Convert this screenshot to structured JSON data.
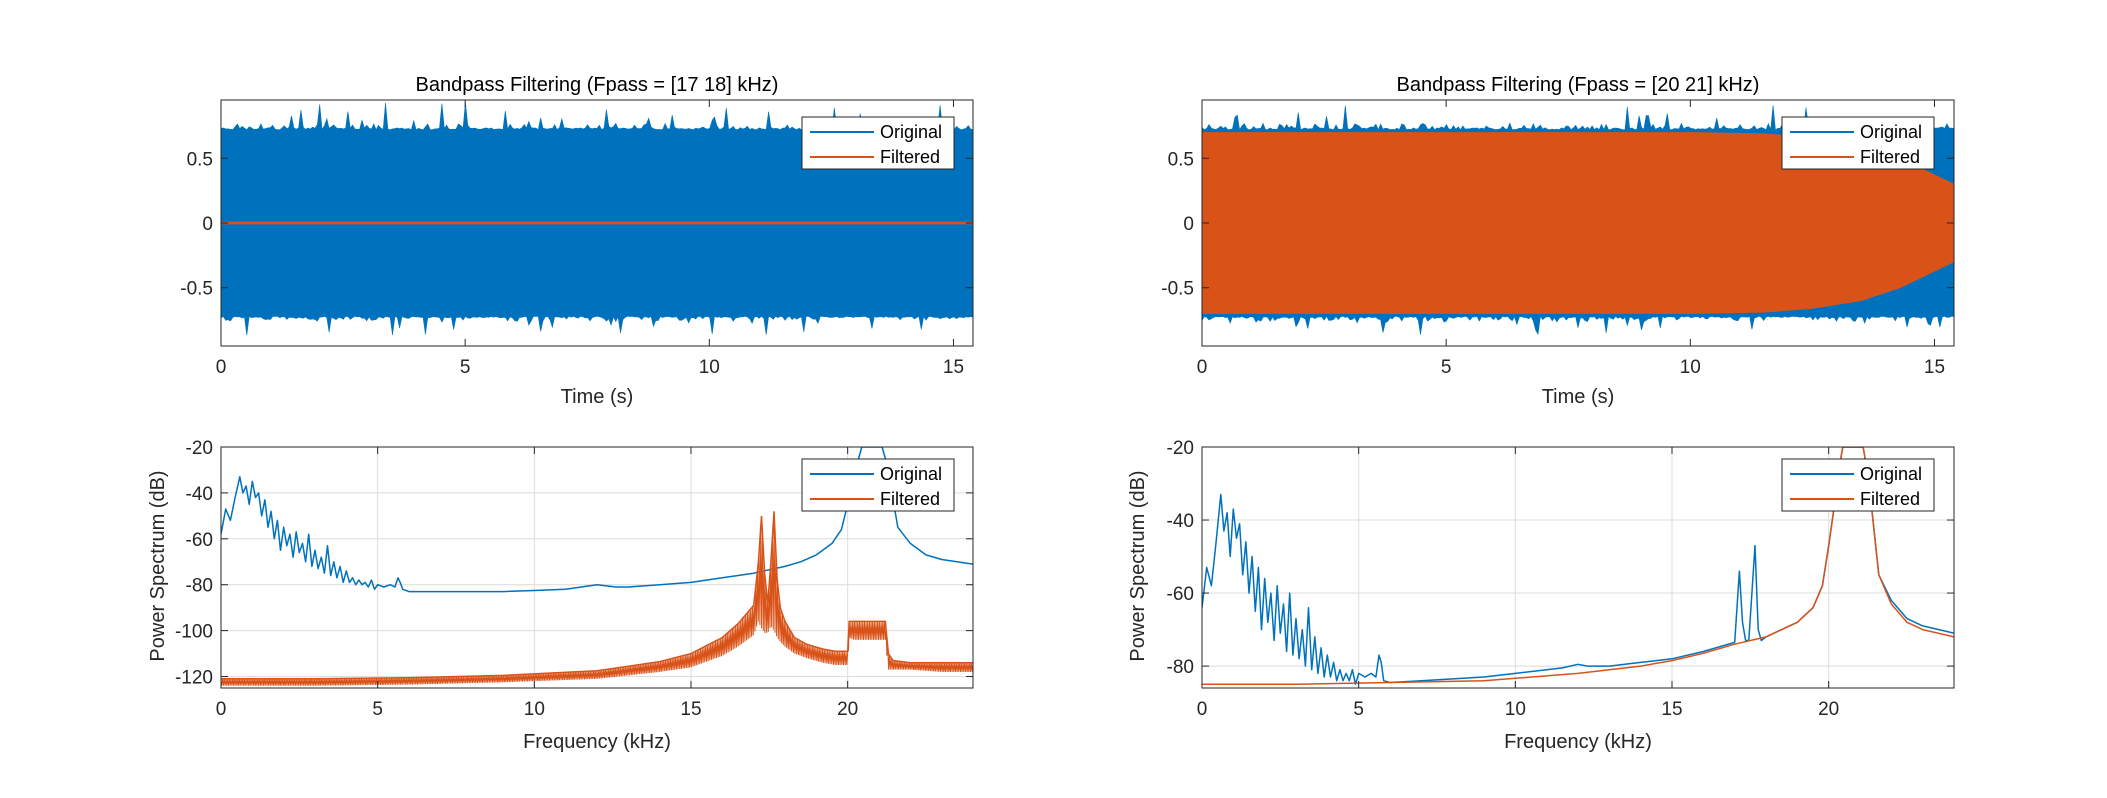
{
  "colors": {
    "original": "#0072BD",
    "filtered": "#D95319",
    "axis": "#262626",
    "grid": "#DCDCDC"
  },
  "chart_data": [
    {
      "id": "tl",
      "type": "area",
      "title": "Bandpass Filtering  (Fpass = [17 18] kHz)",
      "xlabel": "Time (s)",
      "ylabel": "",
      "xlim": [
        0,
        15.4
      ],
      "ylim": [
        -0.95,
        0.95
      ],
      "xticks": [
        0,
        5,
        10,
        15
      ],
      "yticks": [
        -0.5,
        0,
        0.5
      ],
      "ytick_labels": [
        "-0.5",
        "0",
        "0.5"
      ],
      "grid": false,
      "legend": [
        "Original",
        "Filtered"
      ],
      "legend_location": "top-right",
      "series": [
        {
          "name": "Original",
          "kind": "envelope",
          "x": [
            0,
            15.4
          ],
          "upper": [
            0.72,
            0.72
          ],
          "lower": [
            -0.72,
            -0.72
          ],
          "peak_extent": 0.93
        },
        {
          "name": "Filtered",
          "kind": "envelope",
          "x": [
            0,
            15.4
          ],
          "upper": [
            0.003,
            0.003
          ],
          "lower": [
            -0.003,
            -0.003
          ]
        }
      ]
    },
    {
      "id": "tr",
      "type": "area",
      "title": "Bandpass Filtering  (Fpass = [20 21] kHz)",
      "xlabel": "Time (s)",
      "ylabel": "",
      "xlim": [
        0,
        15.4
      ],
      "ylim": [
        -0.95,
        0.95
      ],
      "xticks": [
        0,
        5,
        10,
        15
      ],
      "yticks": [
        -0.5,
        0,
        0.5
      ],
      "ytick_labels": [
        "-0.5",
        "0",
        "0.5"
      ],
      "grid": false,
      "legend": [
        "Original",
        "Filtered"
      ],
      "legend_location": "top-right",
      "series": [
        {
          "name": "Original",
          "kind": "envelope",
          "x": [
            0,
            15.4
          ],
          "upper": [
            0.72,
            0.72
          ],
          "lower": [
            -0.72,
            -0.72
          ],
          "peak_extent": 0.93
        },
        {
          "name": "Filtered",
          "kind": "envelope",
          "x": [
            0,
            8,
            10,
            11.5,
            12.5,
            13.5,
            14.3,
            15.4
          ],
          "upper": [
            0.7,
            0.7,
            0.7,
            0.69,
            0.66,
            0.6,
            0.5,
            0.3
          ],
          "lower": [
            -0.7,
            -0.7,
            -0.7,
            -0.69,
            -0.66,
            -0.6,
            -0.5,
            -0.3
          ]
        }
      ]
    },
    {
      "id": "bl",
      "type": "line",
      "title": "",
      "xlabel": "Frequency (kHz)",
      "ylabel": "Power Spectrum (dB)",
      "xlim": [
        0,
        24
      ],
      "ylim": [
        -125,
        -20
      ],
      "xticks": [
        0,
        5,
        10,
        15,
        20
      ],
      "yticks": [
        -120,
        -100,
        -80,
        -60,
        -40,
        -20
      ],
      "ytick_labels": [
        "-120",
        "-100",
        "-80",
        "-60",
        "-40",
        "-20"
      ],
      "grid": true,
      "legend": [
        "Original",
        "Filtered"
      ],
      "legend_location": "top-right",
      "series": [
        {
          "name": "Original",
          "kind": "line",
          "x": [
            0,
            0.15,
            0.3,
            0.45,
            0.6,
            0.7,
            0.8,
            0.9,
            1.0,
            1.1,
            1.2,
            1.3,
            1.4,
            1.5,
            1.6,
            1.7,
            1.8,
            1.9,
            2.0,
            2.1,
            2.2,
            2.3,
            2.4,
            2.5,
            2.6,
            2.7,
            2.8,
            2.9,
            3.0,
            3.1,
            3.2,
            3.3,
            3.4,
            3.5,
            3.6,
            3.7,
            3.8,
            3.9,
            4.0,
            4.1,
            4.2,
            4.3,
            4.4,
            4.5,
            4.6,
            4.7,
            4.8,
            4.9,
            5.0,
            5.2,
            5.4,
            5.55,
            5.65,
            5.72,
            5.8,
            6.0,
            7,
            8,
            9,
            10,
            11,
            11.5,
            12,
            12.3,
            12.6,
            13,
            14,
            15,
            16,
            17,
            18,
            18.5,
            19,
            19.5,
            19.8,
            20.0,
            20.2,
            20.35,
            20.45,
            21.1,
            21.2,
            21.35,
            21.6,
            22,
            22.5,
            23,
            24
          ],
          "y": [
            -58,
            -47,
            -52,
            -42,
            -33,
            -40,
            -37,
            -45,
            -35,
            -42,
            -40,
            -50,
            -43,
            -55,
            -48,
            -60,
            -52,
            -65,
            -55,
            -63,
            -58,
            -68,
            -57,
            -66,
            -62,
            -70,
            -58,
            -72,
            -65,
            -73,
            -68,
            -75,
            -63,
            -76,
            -70,
            -77,
            -72,
            -79,
            -74,
            -79,
            -77,
            -80,
            -78,
            -80,
            -79,
            -81,
            -78,
            -82,
            -80,
            -81,
            -80,
            -81,
            -77,
            -79,
            -82,
            -83,
            -83,
            -83,
            -83,
            -82.5,
            -82,
            -81,
            -80,
            -80.5,
            -81,
            -81,
            -80,
            -79,
            -77,
            -75,
            -72,
            -70,
            -67,
            -62,
            -56,
            -45,
            -35,
            -25,
            -20,
            -20,
            -25,
            -35,
            -55,
            -62,
            -67,
            -69,
            -71
          ]
        },
        {
          "name": "Filtered",
          "kind": "band",
          "x": [
            0,
            3,
            6,
            9,
            12,
            14,
            15,
            16,
            16.5,
            17.0,
            17.15,
            17.25,
            17.35,
            17.45,
            17.55,
            17.65,
            17.75,
            17.85,
            18.0,
            18.3,
            18.7,
            19.2,
            19.6,
            20.0,
            20.05,
            20.2,
            21.2,
            21.3,
            21.45,
            22,
            23,
            24
          ],
          "upper": [
            -121,
            -121,
            -120.5,
            -119.5,
            -117.5,
            -113.5,
            -110,
            -103,
            -97,
            -89,
            -70,
            -50,
            -75,
            -88,
            -70,
            -48,
            -78,
            -90,
            -96,
            -103,
            -106,
            -108,
            -109,
            -109,
            -96,
            -96,
            -96,
            -110,
            -113,
            -114,
            -114,
            -114
          ],
          "lower": [
            -124,
            -124,
            -123.5,
            -122.5,
            -121,
            -118,
            -116,
            -111,
            -107,
            -102,
            -96,
            -99,
            -101,
            -101,
            -98,
            -100,
            -103,
            -105,
            -107,
            -110,
            -112,
            -114,
            -115,
            -115,
            -103,
            -104,
            -104,
            -117,
            -117,
            -117,
            -118,
            -118
          ]
        }
      ]
    },
    {
      "id": "br",
      "type": "line",
      "title": "",
      "xlabel": "Frequency (kHz)",
      "ylabel": "Power Spectrum (dB)",
      "xlim": [
        0,
        24
      ],
      "ylim": [
        -86,
        -20
      ],
      "xticks": [
        0,
        5,
        10,
        15,
        20
      ],
      "yticks": [
        -80,
        -60,
        -40,
        -20
      ],
      "ytick_labels": [
        "-80",
        "-60",
        "-40",
        "-20"
      ],
      "grid": true,
      "legend": [
        "Original",
        "Filtered"
      ],
      "legend_location": "top-right",
      "series": [
        {
          "name": "Original",
          "kind": "line",
          "x": [
            0,
            0.15,
            0.3,
            0.45,
            0.6,
            0.7,
            0.8,
            0.9,
            1.0,
            1.1,
            1.2,
            1.3,
            1.4,
            1.5,
            1.6,
            1.7,
            1.8,
            1.9,
            2.0,
            2.1,
            2.2,
            2.3,
            2.4,
            2.5,
            2.6,
            2.7,
            2.8,
            2.9,
            3.0,
            3.1,
            3.2,
            3.3,
            3.4,
            3.5,
            3.6,
            3.7,
            3.8,
            3.9,
            4.0,
            4.1,
            4.2,
            4.3,
            4.4,
            4.5,
            4.6,
            4.7,
            4.8,
            4.9,
            5.0,
            5.2,
            5.4,
            5.55,
            5.65,
            5.72,
            5.8,
            6.0,
            7,
            8,
            9,
            10,
            11,
            11.5,
            12,
            12.3,
            12.6,
            13,
            14,
            15,
            16,
            17.0,
            17.15,
            17.25,
            17.35,
            17.45,
            17.55,
            17.65,
            17.75,
            17.85,
            18,
            18.5,
            19,
            19.5,
            19.8,
            20.0,
            20.2,
            20.35,
            20.45,
            21.1,
            21.2,
            21.35,
            21.6,
            22,
            22.5,
            23,
            24
          ],
          "y": [
            -64,
            -53,
            -58,
            -46,
            -33,
            -43,
            -38,
            -50,
            -37,
            -45,
            -41,
            -55,
            -46,
            -60,
            -50,
            -65,
            -53,
            -70,
            -56,
            -68,
            -60,
            -73,
            -58,
            -71,
            -63,
            -76,
            -60,
            -77,
            -67,
            -78,
            -70,
            -80,
            -64,
            -81,
            -72,
            -82,
            -75,
            -83,
            -77,
            -83,
            -79,
            -84,
            -81,
            -84,
            -82,
            -84,
            -81,
            -85,
            -82,
            -83,
            -82,
            -83,
            -77,
            -79,
            -84,
            -84.5,
            -84,
            -83.5,
            -83,
            -82,
            -81,
            -80.5,
            -79.5,
            -80,
            -80,
            -80,
            -79,
            -78,
            -76,
            -73.5,
            -54,
            -68,
            -73,
            -73,
            -60,
            -47,
            -70,
            -73,
            -72,
            -70,
            -68,
            -64,
            -58,
            -47,
            -35,
            -25,
            -20,
            -20,
            -25,
            -35,
            -55,
            -62,
            -67,
            -69,
            -71
          ]
        },
        {
          "name": "Filtered",
          "kind": "line",
          "x": [
            0,
            3,
            6,
            9,
            12,
            14,
            15,
            16,
            17,
            18,
            18.5,
            19,
            19.5,
            19.8,
            20.0,
            20.2,
            20.35,
            20.45,
            21.1,
            21.2,
            21.35,
            21.6,
            22,
            22.5,
            23,
            24
          ],
          "y": [
            -85,
            -85,
            -84.5,
            -84,
            -82,
            -80,
            -78.5,
            -76.5,
            -74,
            -72,
            -70,
            -68,
            -64,
            -58,
            -47,
            -35,
            -25,
            -20,
            -20,
            -25,
            -35,
            -55,
            -63,
            -68,
            -70,
            -72
          ]
        }
      ]
    }
  ]
}
